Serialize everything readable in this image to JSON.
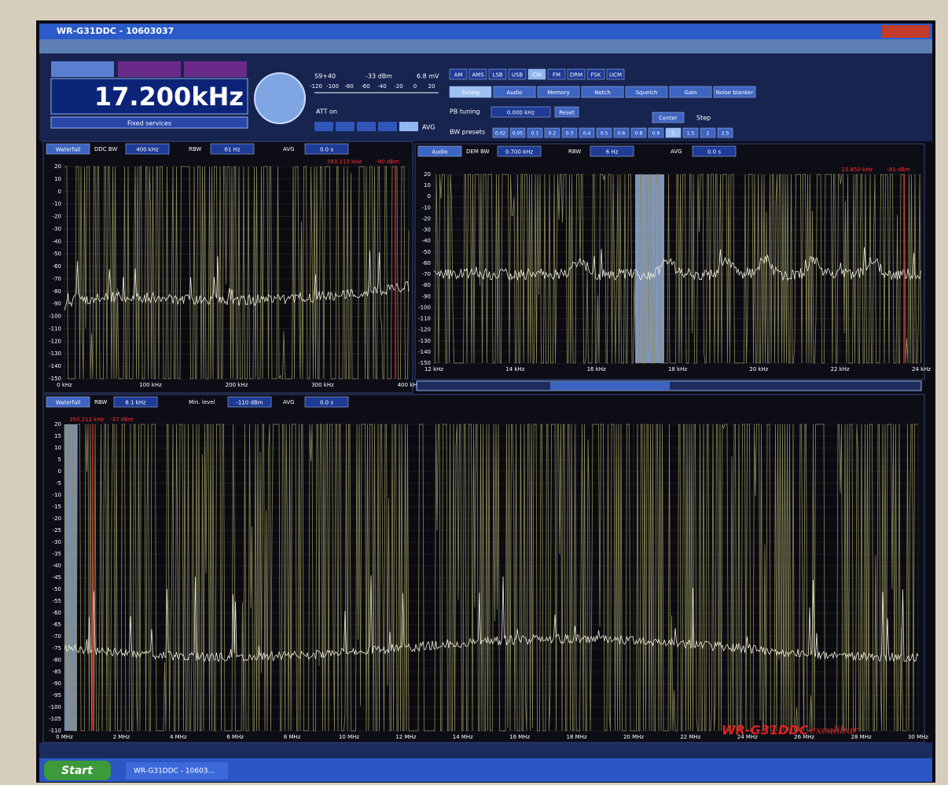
{
  "window": {
    "title": "WR-G31DDC - 10603037"
  },
  "controls": {
    "frequency": "17.200kHz",
    "service": "Fixed services",
    "meter": [
      "S9+40",
      "-33 dBm",
      "6.8 mV"
    ],
    "meter_scale": [
      "-120",
      "-100",
      "-80",
      "-60",
      "-40",
      "-20",
      "0",
      "20"
    ],
    "att": "ATT on",
    "avg": "AVG",
    "modes": [
      "AM",
      "AMS",
      "LSB",
      "USB",
      "CW",
      "FM",
      "DRM",
      "FSK",
      "UCM"
    ],
    "tabs": [
      "Tuning",
      "Audio",
      "Memory",
      "Notch",
      "Squelch",
      "Gain",
      "Noise blanker"
    ],
    "pb_tuning": "PB tuning",
    "pb_value": "0.000 kHz",
    "reset": "Reset",
    "center": "Center",
    "step": "Step",
    "bw_presets": "BW presets",
    "presets": [
      "0.02",
      "0.05",
      "0.1",
      "0.2",
      "0.3",
      "0.4",
      "0.5",
      "0.6",
      "0.8",
      "0.9",
      "1",
      "1.5",
      "2",
      "2.5"
    ]
  },
  "ddc_panel": {
    "mode": "Waterfall",
    "labels": [
      "DDC BW",
      "RBW",
      "AVG"
    ],
    "values": [
      "400 kHz",
      "61 Hz",
      "0.0 s"
    ],
    "marker": [
      "393.213 kHz",
      "-90 dBm"
    ],
    "y_labels": [
      "20",
      "10",
      "0",
      "-10",
      "-20",
      "-30",
      "-40",
      "-50",
      "-60",
      "-70",
      "-80",
      "-90",
      "-100",
      "-110",
      "-120",
      "-130",
      "-140",
      "-150"
    ],
    "x_labels": [
      "0 kHz",
      "100 kHz",
      "200 kHz",
      "300 kHz",
      "400 kHz"
    ]
  },
  "audio_panel": {
    "mode": "Audio",
    "labels": [
      "DEM BW",
      "RBW",
      "AVG"
    ],
    "values": [
      "0.700 kHz",
      "6 Hz",
      "0.0 s"
    ],
    "marker": [
      "23.850 kHz",
      "-81 dBm"
    ],
    "y_labels": [
      "20",
      "10",
      "0",
      "-10",
      "-20",
      "-30",
      "-40",
      "-50",
      "-60",
      "-70",
      "-80",
      "-90",
      "-100",
      "-110",
      "-120",
      "-130",
      "-140",
      "-150"
    ],
    "x_labels": [
      "12 kHz",
      "14 kHz",
      "16 kHz",
      "18 kHz",
      "20 kHz",
      "22 kHz",
      "24 kHz"
    ]
  },
  "wideband_panel": {
    "mode": "Waterfall",
    "labels": [
      "RBW",
      "Min. level",
      "AVG"
    ],
    "values": [
      "6.1 kHz",
      "-110 dBm",
      "0.0 s"
    ],
    "marker": [
      "393.213 kHz",
      "-37 dBm"
    ],
    "y_labels": [
      "20",
      "15",
      "10",
      "5",
      "0",
      "-5",
      "-10",
      "-15",
      "-20",
      "-25",
      "-30",
      "-35",
      "-40",
      "-45",
      "-50",
      "-55",
      "-60",
      "-65",
      "-70",
      "-75",
      "-80",
      "-85",
      "-90",
      "-95",
      "-100",
      "-105",
      "-110"
    ],
    "x_labels": [
      "0 MHz",
      "2 MHz",
      "4 MHz",
      "6 MHz",
      "8 MHz",
      "10 MHz",
      "12 MHz",
      "14 MHz",
      "16 MHz",
      "18 MHz",
      "20 MHz",
      "22 MHz",
      "24 MHz",
      "26 MHz",
      "28 MHz",
      "30 MHz"
    ]
  },
  "brand": {
    "name": "WR-G31DDC",
    "edition": "excalibur"
  },
  "taskbar": {
    "start": "Start",
    "task": "WR-G31DDC - 10603..."
  }
}
